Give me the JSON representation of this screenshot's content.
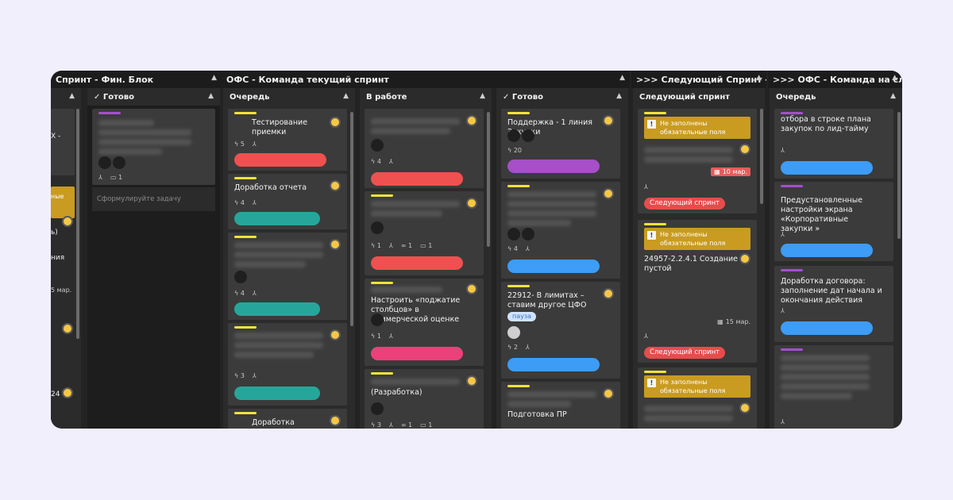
{
  "groups": [
    {
      "title": "Спринт - Фин. Блок"
    },
    {
      "title": "ОФС - Команда текущий спринт"
    },
    {
      "title": ">>> Следующий Спринт - Фин ..."
    },
    {
      "title": ">>> ОФС - Команда на следую..."
    }
  ],
  "columns": {
    "gotovo1": "Готово",
    "ochered1": "Очередь",
    "v_rabote": "В работе",
    "gotovo2": "Готово",
    "next_sprint": "Следующий спринт",
    "ochered2": "Очередь"
  },
  "partial": {
    "frag1": "X -",
    "frag2": "ные",
    "frag3": "ь)",
    "frag4": "ния",
    "frag5": "5 мар.",
    "frag6": "24"
  },
  "gotovo1": {
    "count": "1",
    "placeholder": "Сформулируйте задачу"
  },
  "ochered1_cards": [
    {
      "title": "Тестирование приемки",
      "c1": "5"
    },
    {
      "title": "Доработка отчета",
      "c1": "4"
    },
    {
      "title": "",
      "c1": "4"
    },
    {
      "title": "",
      "c1": "3"
    },
    {
      "title": "Доработка интеграции"
    }
  ],
  "vrabote_cards": [
    {
      "c1": "4"
    },
    {
      "c1": "1",
      "c2": "1",
      "c3": "1"
    },
    {
      "title": "Настроить «поджатие столбцов» в коммерческой оценке",
      "c1": "1"
    },
    {
      "title": "(Разработка)",
      "c1": "3",
      "c2": "1",
      "c3": "1"
    }
  ],
  "gotovo2_cards": [
    {
      "title": "Поддержка - 1 линия Закупки",
      "c1": "20"
    },
    {
      "c1": "4"
    },
    {
      "title": "22912- В лимитах – ставим другое ЦФО",
      "tag": "пауза",
      "c1": "2"
    },
    {
      "title": "Подготовка ПР"
    }
  ],
  "next_cards": [
    {
      "warn": "Не заполнены обязательные поля",
      "date": "10 мар.",
      "sprint": "Следующий спринт"
    },
    {
      "warn": "Не заполнены обязательные поля",
      "title": "24957-2.2.4.1 Создание пустой",
      "date": "15 мар.",
      "sprint": "Следующий спринт"
    },
    {
      "warn": "Не заполнены обязательные поля"
    }
  ],
  "ochered2_cards": [
    {
      "title": "отбора в строке плана закупок по лид-тайму"
    },
    {
      "title": "Предустановленные настройки экрана «Корпоративные закупки »"
    },
    {
      "title": "Доработка договора: заполнение дат начала и окончания действия"
    }
  ],
  "colors": {
    "red": "#ef5050",
    "teal": "#26a69a",
    "blue": "#3d9cf5",
    "purple": "#a64fc8",
    "pink": "#ec407a",
    "yellow": "#f2e33a",
    "violet": "#a34fd1"
  }
}
